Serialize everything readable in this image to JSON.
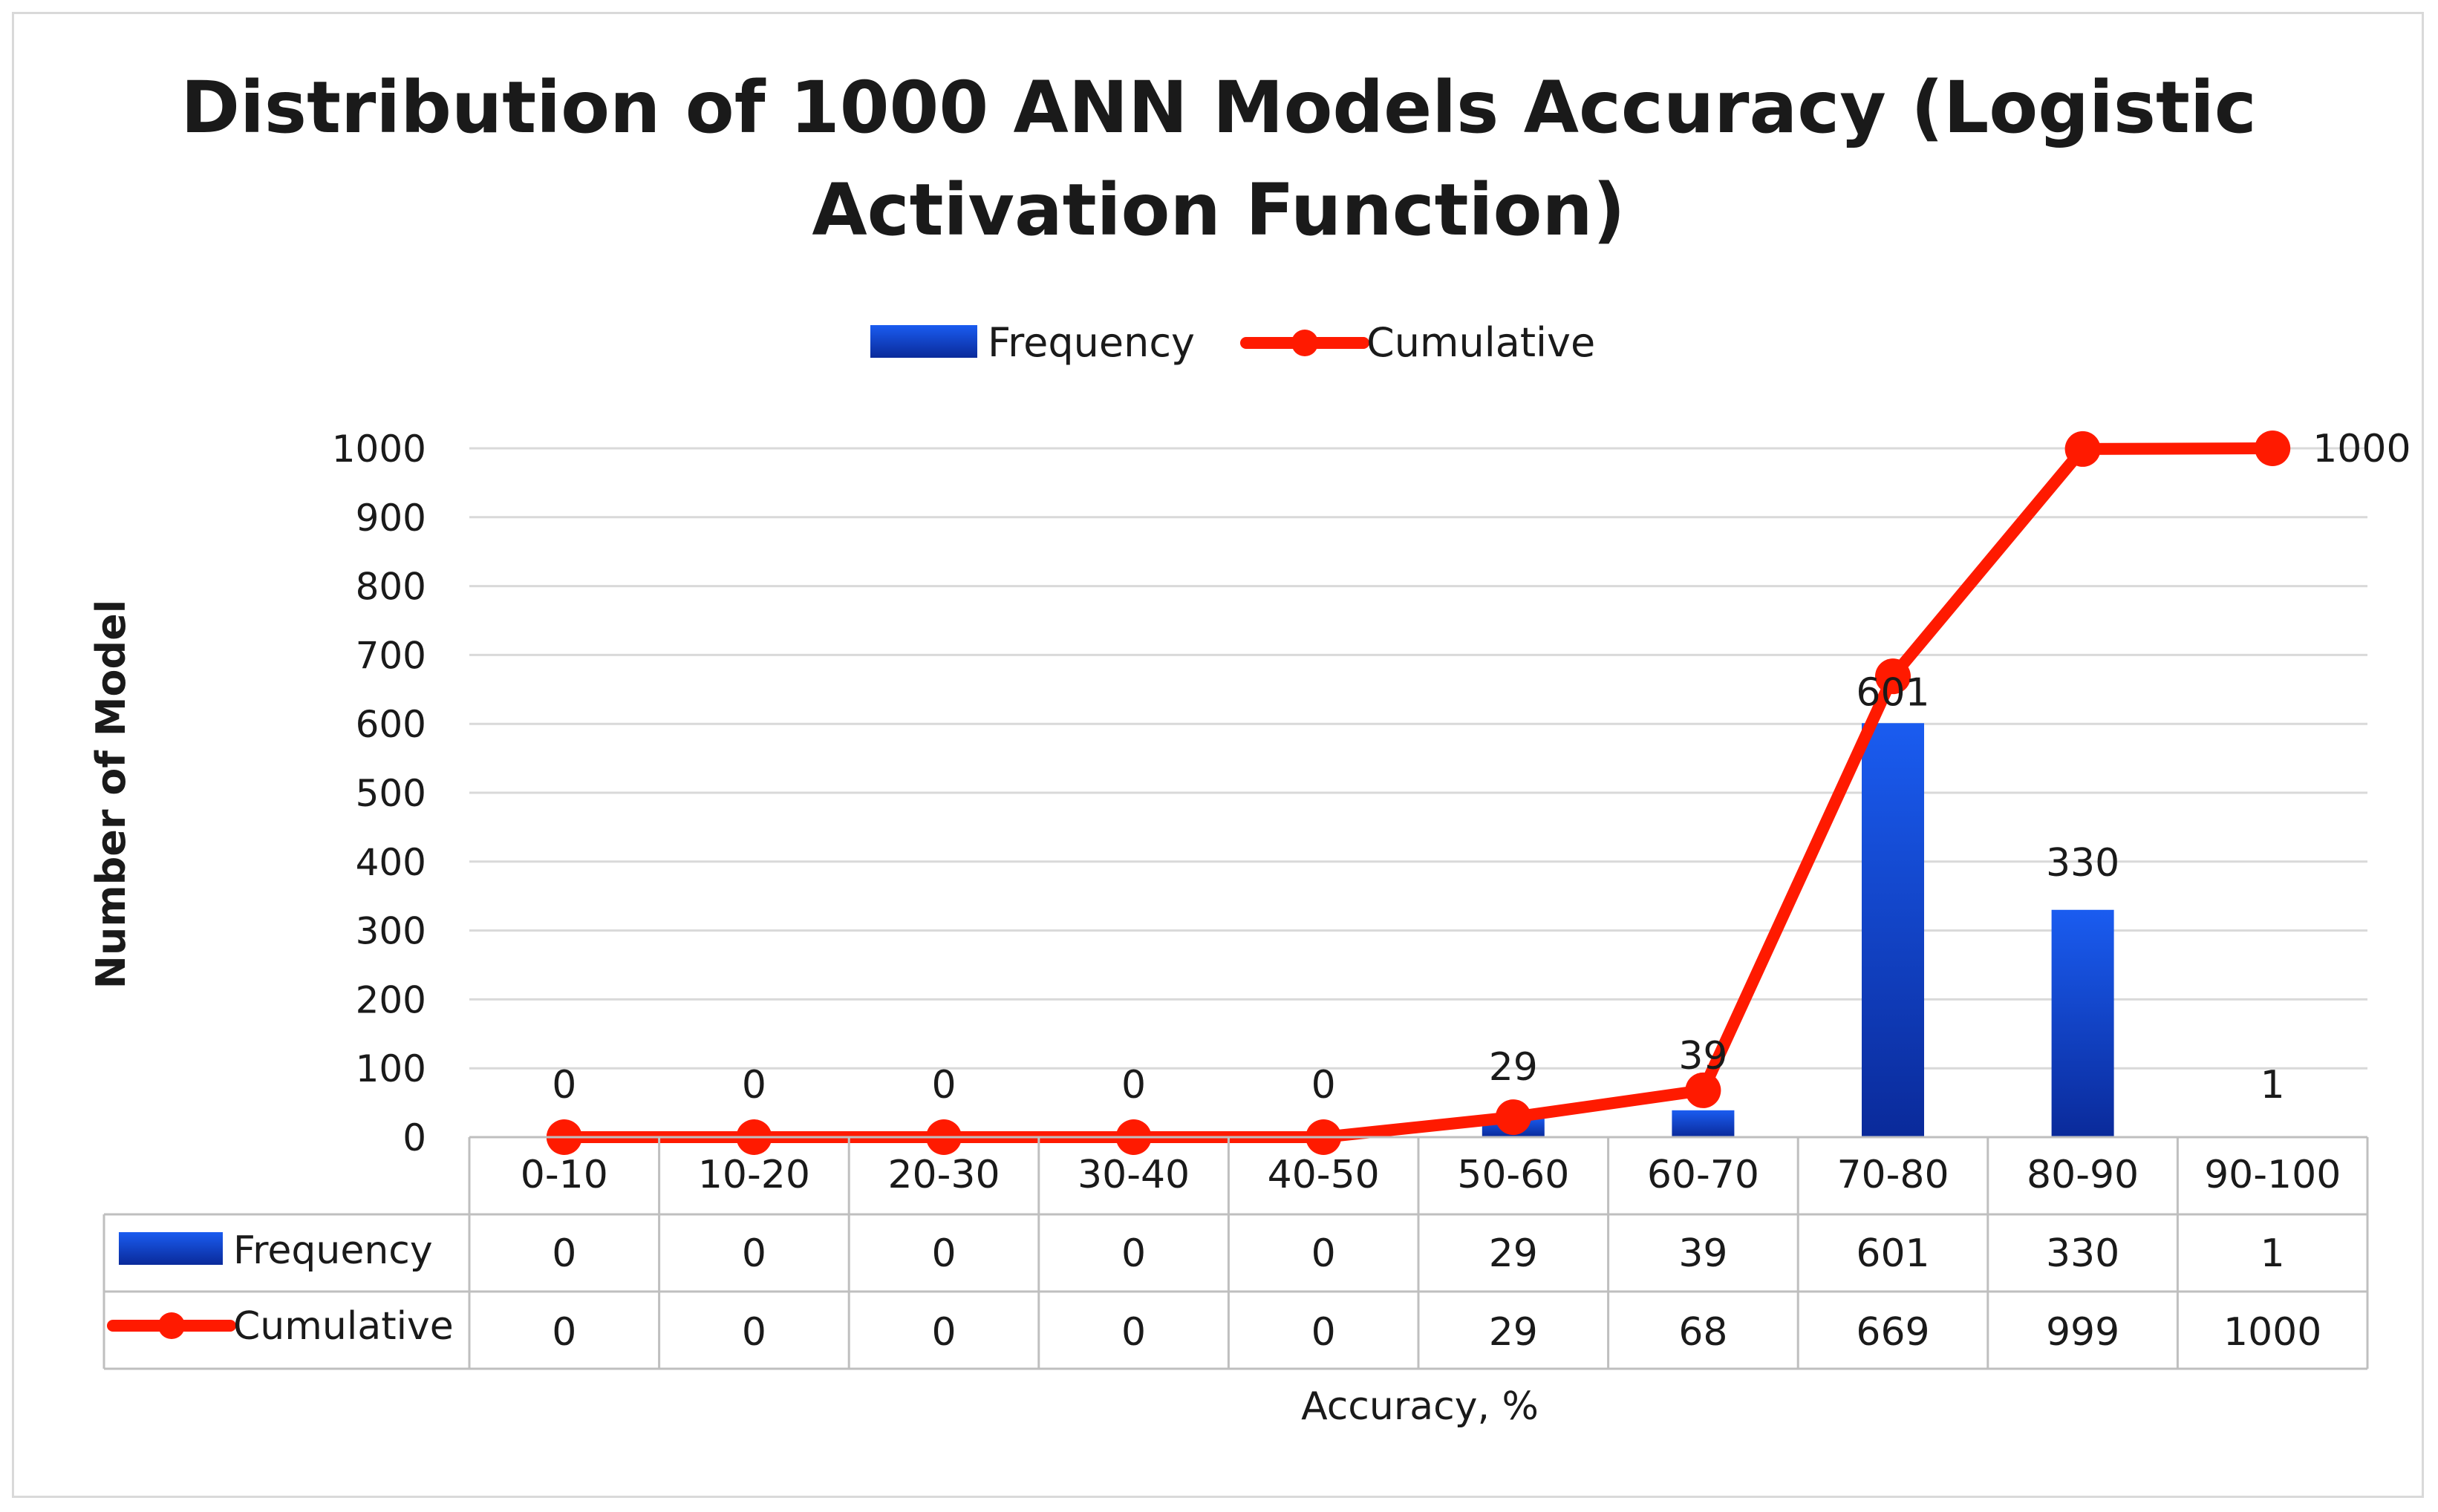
{
  "chart_data": {
    "type": "bar",
    "title_line1": "Distribution of 1000 ANN Models Accuracy (Logistic",
    "title_line2": "Activation Function)",
    "xlabel": "Accuracy, %",
    "ylabel": "Number of Model",
    "ylim": [
      0,
      1000
    ],
    "yticks": [
      0,
      100,
      200,
      300,
      400,
      500,
      600,
      700,
      800,
      900,
      1000
    ],
    "grid": true,
    "legend_position": "top-center",
    "categories": [
      "0-10",
      "10-20",
      "20-30",
      "30-40",
      "40-50",
      "50-60",
      "60-70",
      "70-80",
      "80-90",
      "90-100"
    ],
    "series": [
      {
        "name": "Frequency",
        "kind": "bar",
        "color": "#1446d6",
        "values": [
          0,
          0,
          0,
          0,
          0,
          29,
          39,
          601,
          330,
          1
        ]
      },
      {
        "name": "Cumulative",
        "kind": "line",
        "color": "#ff1a00",
        "values": [
          0,
          0,
          0,
          0,
          0,
          29,
          68,
          669,
          999,
          1000
        ]
      }
    ],
    "data_labels": [
      "0",
      "0",
      "0",
      "0",
      "0",
      "29",
      "39",
      "601",
      "330",
      "1"
    ],
    "end_label": "1000",
    "data_table": true
  }
}
